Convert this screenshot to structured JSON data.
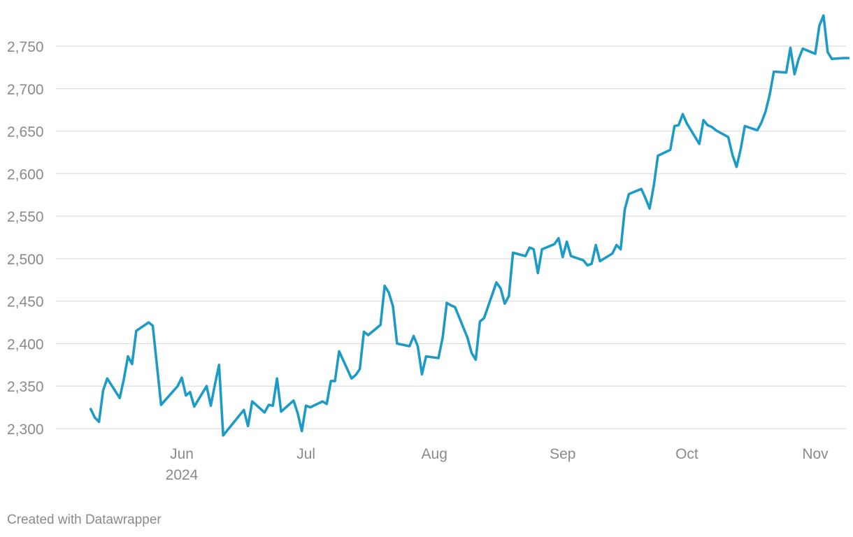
{
  "chart_data": {
    "type": "line",
    "title": "",
    "xlabel": "",
    "ylabel": "",
    "y_ticks": [
      "2,300",
      "2,350",
      "2,400",
      "2,450",
      "2,500",
      "2,550",
      "2,600",
      "2,650",
      "2,700",
      "2,750"
    ],
    "y_tick_values": [
      2300,
      2350,
      2400,
      2450,
      2500,
      2550,
      2600,
      2650,
      2700,
      2750
    ],
    "ylim": [
      2290,
      2790
    ],
    "x_ticks": [
      {
        "label": "Jun",
        "sublabel": "2024",
        "date": "2024-06-01"
      },
      {
        "label": "Jul",
        "sublabel": "",
        "date": "2024-07-01"
      },
      {
        "label": "Aug",
        "sublabel": "",
        "date": "2024-08-01"
      },
      {
        "label": "Sep",
        "sublabel": "",
        "date": "2024-09-01"
      },
      {
        "label": "Oct",
        "sublabel": "",
        "date": "2024-10-01"
      },
      {
        "label": "Nov",
        "sublabel": "",
        "date": "2024-11-01"
      }
    ],
    "grid": true,
    "line_color": "#1d9bc7",
    "series": [
      {
        "points": [
          [
            "2024-05-10",
            2323
          ],
          [
            "2024-05-11",
            2313
          ],
          [
            "2024-05-12",
            2308
          ],
          [
            "2024-05-13",
            2345
          ],
          [
            "2024-05-14",
            2359
          ],
          [
            "2024-05-17",
            2336
          ],
          [
            "2024-05-18",
            2358
          ],
          [
            "2024-05-19",
            2385
          ],
          [
            "2024-05-20",
            2376
          ],
          [
            "2024-05-21",
            2415
          ],
          [
            "2024-05-24",
            2425
          ],
          [
            "2024-05-25",
            2421
          ],
          [
            "2024-05-27",
            2328
          ],
          [
            "2024-05-31",
            2350
          ],
          [
            "2024-06-01",
            2360
          ],
          [
            "2024-06-02",
            2339
          ],
          [
            "2024-06-03",
            2343
          ],
          [
            "2024-06-04",
            2326
          ],
          [
            "2024-06-07",
            2350
          ],
          [
            "2024-06-08",
            2327
          ],
          [
            "2024-06-09",
            2352
          ],
          [
            "2024-06-10",
            2375
          ],
          [
            "2024-06-11",
            2292
          ],
          [
            "2024-06-16",
            2322
          ],
          [
            "2024-06-17",
            2303
          ],
          [
            "2024-06-18",
            2332
          ],
          [
            "2024-06-21",
            2319
          ],
          [
            "2024-06-22",
            2328
          ],
          [
            "2024-06-23",
            2327
          ],
          [
            "2024-06-24",
            2359
          ],
          [
            "2024-06-25",
            2320
          ],
          [
            "2024-06-28",
            2333
          ],
          [
            "2024-06-29",
            2318
          ],
          [
            "2024-06-30",
            2297
          ],
          [
            "2024-07-01",
            2327
          ],
          [
            "2024-07-02",
            2325
          ],
          [
            "2024-07-05",
            2332
          ],
          [
            "2024-07-06",
            2329
          ],
          [
            "2024-07-07",
            2356
          ],
          [
            "2024-07-08",
            2356
          ],
          [
            "2024-07-09",
            2391
          ],
          [
            "2024-07-12",
            2359
          ],
          [
            "2024-07-13",
            2363
          ],
          [
            "2024-07-14",
            2370
          ],
          [
            "2024-07-15",
            2414
          ],
          [
            "2024-07-16",
            2410
          ],
          [
            "2024-07-19",
            2422
          ],
          [
            "2024-07-20",
            2468
          ],
          [
            "2024-07-21",
            2460
          ],
          [
            "2024-07-22",
            2444
          ],
          [
            "2024-07-23",
            2400
          ],
          [
            "2024-07-26",
            2397
          ],
          [
            "2024-07-27",
            2409
          ],
          [
            "2024-07-28",
            2397
          ],
          [
            "2024-07-29",
            2364
          ],
          [
            "2024-07-30",
            2385
          ],
          [
            "2024-08-02",
            2383
          ],
          [
            "2024-08-03",
            2407
          ],
          [
            "2024-08-04",
            2448
          ],
          [
            "2024-08-05",
            2445
          ],
          [
            "2024-08-06",
            2443
          ],
          [
            "2024-08-09",
            2407
          ],
          [
            "2024-08-10",
            2389
          ],
          [
            "2024-08-11",
            2381
          ],
          [
            "2024-08-12",
            2426
          ],
          [
            "2024-08-13",
            2430
          ],
          [
            "2024-08-16",
            2472
          ],
          [
            "2024-08-17",
            2465
          ],
          [
            "2024-08-18",
            2447
          ],
          [
            "2024-08-19",
            2456
          ],
          [
            "2024-08-20",
            2507
          ],
          [
            "2024-08-23",
            2503
          ],
          [
            "2024-08-24",
            2513
          ],
          [
            "2024-08-25",
            2511
          ],
          [
            "2024-08-26",
            2483
          ],
          [
            "2024-08-27",
            2511
          ],
          [
            "2024-08-30",
            2517
          ],
          [
            "2024-08-31",
            2524
          ],
          [
            "2024-09-01",
            2502
          ],
          [
            "2024-09-02",
            2520
          ],
          [
            "2024-09-03",
            2503
          ],
          [
            "2024-09-06",
            2498
          ],
          [
            "2024-09-07",
            2492
          ],
          [
            "2024-09-08",
            2494
          ],
          [
            "2024-09-09",
            2516
          ],
          [
            "2024-09-10",
            2497
          ],
          [
            "2024-09-13",
            2506
          ],
          [
            "2024-09-14",
            2516
          ],
          [
            "2024-09-15",
            2511
          ],
          [
            "2024-09-16",
            2558
          ],
          [
            "2024-09-17",
            2576
          ],
          [
            "2024-09-20",
            2582
          ],
          [
            "2024-09-21",
            2571
          ],
          [
            "2024-09-22",
            2559
          ],
          [
            "2024-09-23",
            2586
          ],
          [
            "2024-09-24",
            2621
          ],
          [
            "2024-09-27",
            2628
          ],
          [
            "2024-09-28",
            2656
          ],
          [
            "2024-09-29",
            2657
          ],
          [
            "2024-09-30",
            2670
          ],
          [
            "2024-10-01",
            2659
          ],
          [
            "2024-10-04",
            2635
          ],
          [
            "2024-10-05",
            2663
          ],
          [
            "2024-10-06",
            2657
          ],
          [
            "2024-10-07",
            2655
          ],
          [
            "2024-10-08",
            2651
          ],
          [
            "2024-10-11",
            2643
          ],
          [
            "2024-10-12",
            2622
          ],
          [
            "2024-10-13",
            2608
          ],
          [
            "2024-10-14",
            2629
          ],
          [
            "2024-10-15",
            2656
          ],
          [
            "2024-10-18",
            2651
          ],
          [
            "2024-10-19",
            2660
          ],
          [
            "2024-10-20",
            2673
          ],
          [
            "2024-10-21",
            2693
          ],
          [
            "2024-10-22",
            2720
          ],
          [
            "2024-10-25",
            2719
          ],
          [
            "2024-10-26",
            2748
          ],
          [
            "2024-10-27",
            2717
          ],
          [
            "2024-10-28",
            2735
          ],
          [
            "2024-10-29",
            2747
          ],
          [
            "2024-11-01",
            2741
          ],
          [
            "2024-11-02",
            2774
          ],
          [
            "2024-11-03",
            2786
          ],
          [
            "2024-11-04",
            2743
          ],
          [
            "2024-11-05",
            2735
          ],
          [
            "2024-11-08",
            2736
          ],
          [
            "2024-11-09",
            2736
          ]
        ]
      }
    ]
  },
  "footer": {
    "credit": "Created with Datawrapper"
  }
}
